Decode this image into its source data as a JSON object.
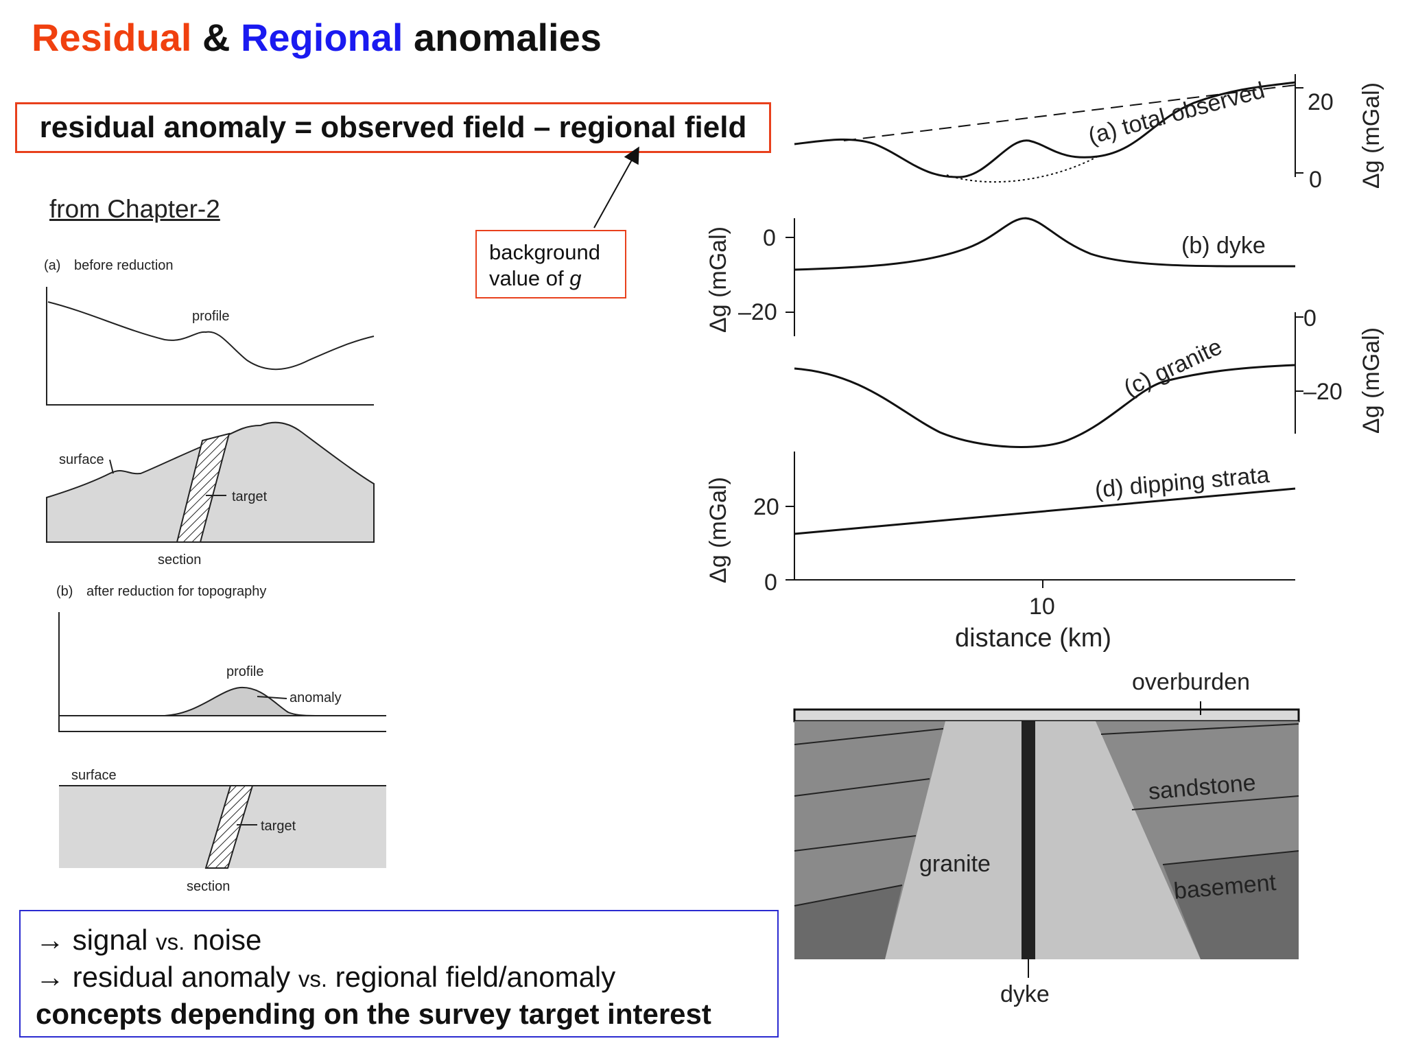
{
  "title": {
    "part1": "Residual",
    "part2": " & ",
    "part3": "Regional",
    "part4": " anomalies"
  },
  "formula": "residual anomaly = observed field – regional field",
  "background_note": {
    "line1": "background",
    "line2_prefix": "value of ",
    "line2_var": "g"
  },
  "chapter_ref": "from Chapter-2",
  "left_figure": {
    "panel_a_letter": "(a)",
    "panel_a_label": "before reduction",
    "profile_label": "profile",
    "surface_label": "surface",
    "target_label": "target",
    "section_label": "section",
    "panel_b_letter": "(b)",
    "panel_b_label": "after reduction for topography",
    "anomaly_label": "anomaly"
  },
  "right_figure": {
    "curve_a_label": "(a) total observed",
    "curve_b_label": "(b) dyke",
    "curve_c_label": "(c) granite",
    "curve_d_label": "(d) dipping strata",
    "axis_unit_label": "Δg (mGal)",
    "tick_a_20": "20",
    "tick_a_0": "0",
    "tick_b_0": "0",
    "tick_b_m20": "–20",
    "tick_c_0": "0",
    "tick_c_m20": "–20",
    "tick_d_20": "20",
    "tick_d_0": "0",
    "x_tick_10": "10",
    "x_axis_label": "distance (km)"
  },
  "cross_section": {
    "overburden_label": "overburden",
    "sandstone_label": "sandstone",
    "granite_label": "granite",
    "basement_label": "basement",
    "dyke_label": "dyke",
    "colors": {
      "overburden": "#d9d9d9",
      "strata": "#8a8a8a",
      "lower_strata": "#6a6a6a",
      "granite": "#c4c4c4",
      "dyke": "#222222"
    }
  },
  "summary": {
    "line1_arrow": "→",
    "line1_a": " signal  ",
    "line1_vs": "vs.",
    "line1_b": " noise",
    "line2_arrow": "→",
    "line2_a": " residual anomaly ",
    "line2_vs": "vs.",
    "line2_b": " regional field/anomaly",
    "line3": "concepts depending on the survey target interest"
  },
  "colors": {
    "residual_red": "#f0400f",
    "regional_blue": "#1a1af0",
    "formula_border": "#e8401c",
    "summary_border": "#2a2ad0"
  }
}
